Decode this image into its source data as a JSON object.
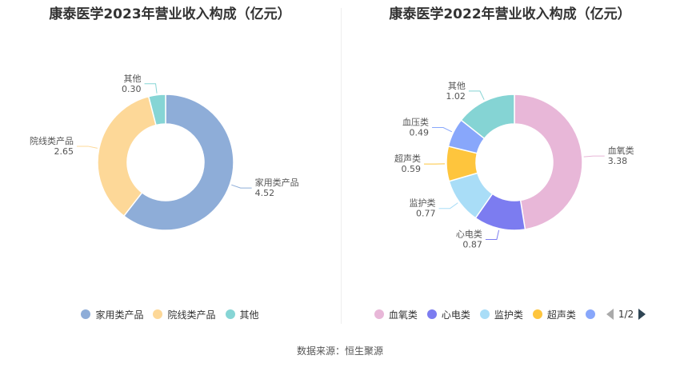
{
  "chart_data": [
    {
      "type": "pie",
      "title": "康泰医学2023年营业收入构成（亿元）",
      "slices": [
        {
          "name": "家用类产品",
          "value": 4.52,
          "value_label": "4.52",
          "color": "#8eadd8"
        },
        {
          "name": "院线类产品",
          "value": 2.65,
          "value_label": "2.65",
          "color": "#fdd898"
        },
        {
          "name": "其他",
          "value": 0.3,
          "value_label": "0.30",
          "color": "#86d5d5"
        }
      ],
      "legend": [
        "家用类产品",
        "院线类产品",
        "其他"
      ],
      "legend_position": "bottom"
    },
    {
      "type": "pie",
      "title": "康泰医学2022年营业收入构成（亿元）",
      "slices": [
        {
          "name": "血氧类",
          "value": 3.38,
          "value_label": "3.38",
          "color": "#e8b7d8"
        },
        {
          "name": "心电类",
          "value": 0.87,
          "value_label": "0.87",
          "color": "#7c7cf0"
        },
        {
          "name": "监护类",
          "value": 0.77,
          "value_label": "0.77",
          "color": "#a9ddf7"
        },
        {
          "name": "超声类",
          "value": 0.59,
          "value_label": "0.59",
          "color": "#fec53d"
        },
        {
          "name": "血压类",
          "value": 0.49,
          "value_label": "0.49",
          "color": "#88a7fb"
        },
        {
          "name": "其他",
          "value": 1.02,
          "value_label": "1.02",
          "color": "#85d4d4"
        }
      ],
      "legend": [
        "血氧类",
        "心电类",
        "监护类",
        "超声类"
      ],
      "legend_position": "bottom",
      "legend_page": "1/2"
    }
  ],
  "footer": {
    "source": "数据来源：恒生聚源"
  }
}
